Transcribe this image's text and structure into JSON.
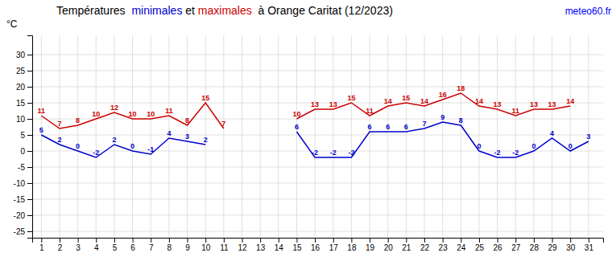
{
  "chart_data": {
    "type": "line",
    "title": "Températures  minimales et maximales  à Orange Caritat (12/2023)",
    "y_label": "°C",
    "annotations": [
      {
        "text": "meteo60.fr",
        "color": "blue"
      }
    ],
    "x": [
      1,
      2,
      3,
      4,
      5,
      6,
      7,
      8,
      9,
      10,
      11,
      12,
      13,
      14,
      15,
      16,
      17,
      18,
      19,
      20,
      21,
      22,
      23,
      24,
      25,
      26,
      27,
      28,
      29,
      30,
      31
    ],
    "series": [
      {
        "name": "minimales",
        "color": "#0000cc",
        "values": [
          5,
          2,
          0,
          -2,
          2,
          0,
          -1,
          4,
          3,
          2,
          null,
          null,
          null,
          null,
          6,
          -2,
          -2,
          -2,
          6,
          6,
          6,
          7,
          9,
          8,
          0,
          -2,
          -2,
          0,
          4,
          0,
          3
        ]
      },
      {
        "name": "maximales",
        "color": "#cc0000",
        "values": [
          11,
          7,
          8,
          10,
          12,
          10,
          10,
          11,
          8,
          15,
          7,
          null,
          null,
          null,
          10,
          13,
          13,
          15,
          11,
          14,
          15,
          14,
          16,
          18,
          14,
          13,
          11,
          13,
          13,
          14,
          null
        ]
      }
    ],
    "xlim": [
      0.5,
      31.8
    ],
    "xticks": [
      1,
      2,
      3,
      4,
      5,
      6,
      7,
      8,
      9,
      10,
      11,
      12,
      13,
      14,
      15,
      16,
      17,
      18,
      19,
      20,
      21,
      22,
      23,
      24,
      25,
      26,
      27,
      28,
      29,
      30,
      31
    ],
    "ylim": [
      -27,
      36
    ],
    "yticks": [
      -25,
      -20,
      -15,
      -10,
      -5,
      0,
      5,
      10,
      15,
      20,
      25,
      30
    ],
    "grid": true,
    "data_labels": true
  }
}
